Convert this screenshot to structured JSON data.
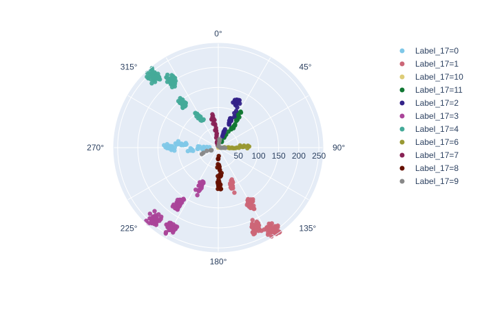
{
  "chart_data": {
    "type": "scatter",
    "subtype": "polar",
    "radial_axis": {
      "range": [
        0,
        260
      ],
      "ticks": [
        50,
        100,
        150,
        200,
        250
      ],
      "tick_labels": [
        "50",
        "100",
        "150",
        "200",
        "250"
      ]
    },
    "angular_axis": {
      "direction": "clockwise",
      "rotation": "0° at top",
      "ticks": [
        0,
        45,
        90,
        135,
        180,
        225,
        270,
        315
      ],
      "tick_labels": [
        "0°",
        "45°",
        "90°",
        "135°",
        "180°",
        "225°",
        "270°",
        "315°"
      ]
    },
    "grid": true,
    "legend_position": "right",
    "series": [
      {
        "name": "Label_17=0",
        "color": "#7fc8e8",
        "points": [
          {
            "theta": 270,
            "r": 120
          },
          {
            "theta": 275,
            "r": 90
          },
          {
            "theta": 266,
            "r": 60
          },
          {
            "theta": 272,
            "r": 30
          }
        ]
      },
      {
        "name": "Label_17=1",
        "color": "#cc6677",
        "points": [
          {
            "theta": 155,
            "r": 220
          },
          {
            "theta": 150,
            "r": 160
          },
          {
            "theta": 160,
            "r": 100
          },
          {
            "theta": 147,
            "r": 245
          }
        ]
      },
      {
        "name": "Label_17=10",
        "color": "#ddcc77",
        "points": [
          {
            "theta": 90,
            "r": 20
          },
          {
            "theta": 88,
            "r": 12
          }
        ]
      },
      {
        "name": "Label_17=11",
        "color": "#117733",
        "points": [
          {
            "theta": 32,
            "r": 90
          },
          {
            "theta": 35,
            "r": 60
          },
          {
            "theta": 30,
            "r": 30
          }
        ]
      },
      {
        "name": "Label_17=2",
        "color": "#332288",
        "points": [
          {
            "theta": 22,
            "r": 120
          },
          {
            "theta": 25,
            "r": 80
          },
          {
            "theta": 20,
            "r": 40
          }
        ]
      },
      {
        "name": "Label_17=3",
        "color": "#aa4499",
        "points": [
          {
            "theta": 210,
            "r": 230
          },
          {
            "theta": 215,
            "r": 170
          },
          {
            "theta": 205,
            "r": 110
          },
          {
            "theta": 222,
            "r": 240
          }
        ]
      },
      {
        "name": "Label_17=4",
        "color": "#44aa99",
        "points": [
          {
            "theta": 325,
            "r": 200
          },
          {
            "theta": 322,
            "r": 140
          },
          {
            "theta": 328,
            "r": 90
          },
          {
            "theta": 318,
            "r": 240
          }
        ]
      },
      {
        "name": "Label_17=6",
        "color": "#999933",
        "points": [
          {
            "theta": 88,
            "r": 65
          },
          {
            "theta": 91,
            "r": 40
          },
          {
            "theta": 90,
            "r": 20
          }
        ]
      },
      {
        "name": "Label_17=7",
        "color": "#882255",
        "points": [
          {
            "theta": 350,
            "r": 70
          },
          {
            "theta": 352,
            "r": 45
          },
          {
            "theta": 348,
            "r": 20
          }
        ]
      },
      {
        "name": "Label_17=8",
        "color": "#661100",
        "points": [
          {
            "theta": 178,
            "r": 90
          },
          {
            "theta": 175,
            "r": 60
          },
          {
            "theta": 180,
            "r": 30
          }
        ]
      },
      {
        "name": "Label_17=9",
        "color": "#888888",
        "points": [
          {
            "theta": 250,
            "r": 25
          },
          {
            "theta": 90,
            "r": 15
          },
          {
            "theta": 10,
            "r": 10
          }
        ]
      }
    ]
  }
}
